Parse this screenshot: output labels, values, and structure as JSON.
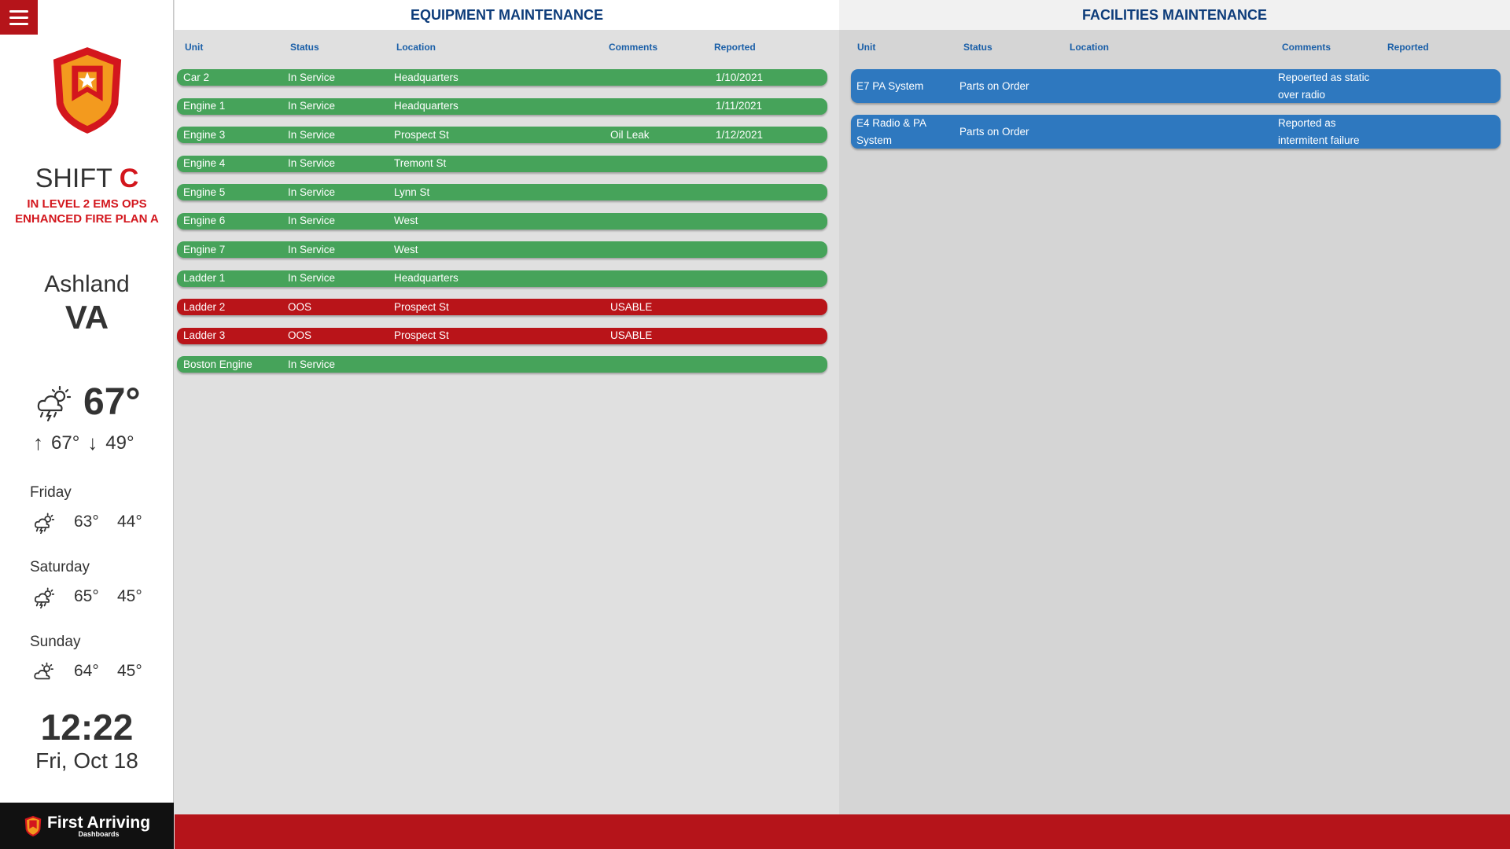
{
  "sidebar": {
    "shift_prefix": "SHIFT",
    "shift_letter": "C",
    "ops_line1": "IN LEVEL 2 EMS OPS",
    "ops_line2": "ENHANCED FIRE PLAN A",
    "city": "Ashland",
    "state": "VA",
    "weather": {
      "current_icon": "thunderstorm-sun-icon",
      "current_temp": "67°",
      "high": "67°",
      "low": "49°",
      "forecast": [
        {
          "day": "Friday",
          "icon": "thunderstorm-sun-icon",
          "high": "63°",
          "low": "44°"
        },
        {
          "day": "Saturday",
          "icon": "thunderstorm-sun-icon",
          "high": "65°",
          "low": "45°"
        },
        {
          "day": "Sunday",
          "icon": "partly-cloudy-icon",
          "high": "64°",
          "low": "45°"
        }
      ]
    },
    "time": "12:22",
    "date": "Fri, Oct 18",
    "brand_name": "First Arriving",
    "brand_sub": "Dashboards"
  },
  "equipment": {
    "title": "EQUIPMENT MAINTENANCE",
    "columns": [
      "Unit",
      "Status",
      "Location",
      "Comments",
      "Reported"
    ],
    "rows": [
      {
        "unit": "Car 2",
        "status": "In Service",
        "location": "Headquarters",
        "comments": "",
        "reported": "1/10/2021",
        "color": "green"
      },
      {
        "unit": "Engine 1",
        "status": "In Service",
        "location": "Headquarters",
        "comments": "",
        "reported": "1/11/2021",
        "color": "green"
      },
      {
        "unit": "Engine 3",
        "status": "In Service",
        "location": "Prospect St",
        "comments": "Oil Leak",
        "reported": "1/12/2021",
        "color": "green"
      },
      {
        "unit": "Engine 4",
        "status": "In Service",
        "location": "Tremont St",
        "comments": "",
        "reported": "",
        "color": "green"
      },
      {
        "unit": "Engine 5",
        "status": "In Service",
        "location": "Lynn St",
        "comments": "",
        "reported": "",
        "color": "green"
      },
      {
        "unit": "Engine 6",
        "status": "In Service",
        "location": "West",
        "comments": "",
        "reported": "",
        "color": "green"
      },
      {
        "unit": "Engine 7",
        "status": "In Service",
        "location": "West",
        "comments": "",
        "reported": "",
        "color": "green"
      },
      {
        "unit": "Ladder 1",
        "status": "In Service",
        "location": "Headquarters",
        "comments": "",
        "reported": "",
        "color": "green"
      },
      {
        "unit": "Ladder 2",
        "status": "OOS",
        "location": "Prospect St",
        "comments": "USABLE",
        "reported": "",
        "color": "red"
      },
      {
        "unit": "Ladder 3",
        "status": "OOS",
        "location": "Prospect St",
        "comments": "USABLE",
        "reported": "",
        "color": "red"
      },
      {
        "unit": "Boston Engine",
        "status": "In Service",
        "location": "",
        "comments": "",
        "reported": "",
        "color": "green"
      }
    ]
  },
  "facilities": {
    "title": "FACILITIES MAINTENANCE",
    "columns": [
      "Unit",
      "Status",
      "Location",
      "Comments",
      "Reported"
    ],
    "rows": [
      {
        "unit": "E7 PA System",
        "status": "Parts on Order",
        "location": "",
        "comments": "Repoerted as static over radio",
        "reported": "",
        "color": "blue"
      },
      {
        "unit": "E4 Radio & PA System",
        "status": "Parts on Order",
        "location": "",
        "comments": "Reported as intermitent failure",
        "reported": "",
        "color": "blue"
      }
    ]
  },
  "colors": {
    "brand_red": "#b5141a",
    "accent_red": "#d3161d",
    "header_blue": "#0d3c7a",
    "column_blue": "#1a5fa8",
    "in_service_green": "#46a35a",
    "oos_red": "#b91419",
    "facility_blue": "#2e78bf"
  }
}
